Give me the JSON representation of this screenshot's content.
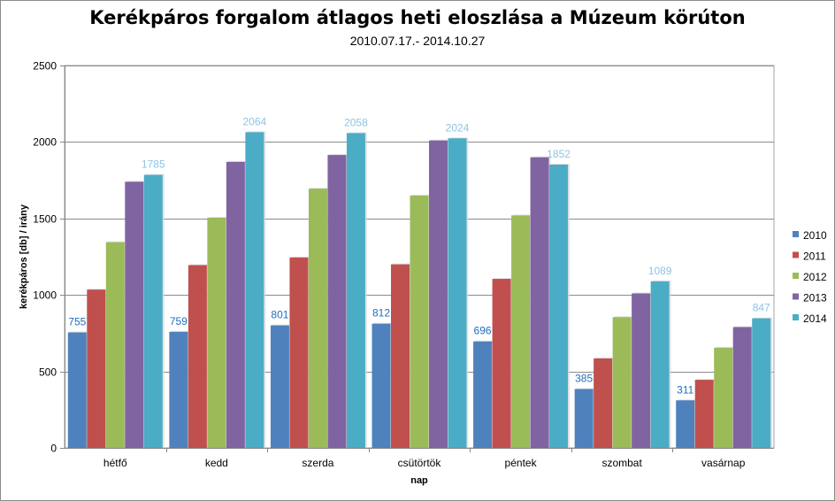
{
  "chart_data": {
    "type": "bar",
    "title": "Kerékpáros forgalom átlagos heti eloszlása a Múzeum körúton",
    "subtitle": "2010.07.17.- 2014.10.27",
    "xlabel": "nap",
    "ylabel": "kerékpáros [db] / irány",
    "ylim": [
      0,
      2500
    ],
    "yticks": [
      0,
      500,
      1000,
      1500,
      2000,
      2500
    ],
    "grid": true,
    "legend_position": "right",
    "categories": [
      "hétfő",
      "kedd",
      "szerda",
      "csütörtök",
      "péntek",
      "szombat",
      "vasárnap"
    ],
    "series": [
      {
        "name": "2010",
        "color": "#4f81bd",
        "label_color": "#1f6fbf",
        "show_labels": true,
        "values": [
          755,
          759,
          801,
          812,
          696,
          385,
          311
        ]
      },
      {
        "name": "2011",
        "color": "#c0504d",
        "show_labels": false,
        "values": [
          1035,
          1195,
          1245,
          1200,
          1105,
          585,
          445
        ]
      },
      {
        "name": "2012",
        "color": "#9bbb59",
        "show_labels": false,
        "values": [
          1345,
          1505,
          1695,
          1650,
          1520,
          855,
          655
        ]
      },
      {
        "name": "2013",
        "color": "#8064a2",
        "show_labels": false,
        "values": [
          1740,
          1870,
          1915,
          2010,
          1900,
          1010,
          790
        ]
      },
      {
        "name": "2014",
        "color": "#4bacc6",
        "label_color": "#8fc3e3",
        "show_labels": true,
        "values": [
          1785,
          2064,
          2058,
          2024,
          1852,
          1089,
          847
        ]
      }
    ]
  }
}
